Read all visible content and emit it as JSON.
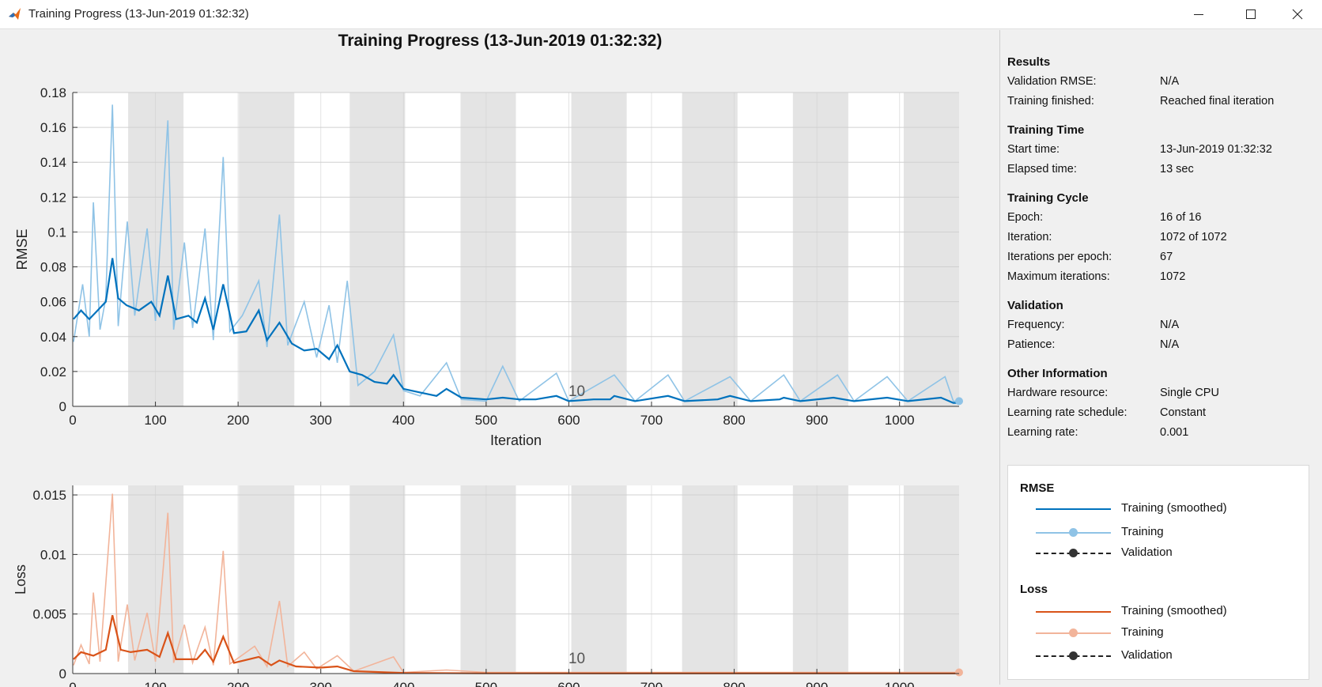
{
  "window": {
    "title": "Training Progress (13-Jun-2019 01:32:32)",
    "controls": [
      "minimize",
      "maximize",
      "close"
    ]
  },
  "main_title": "Training Progress (13-Jun-2019 01:32:32)",
  "colors": {
    "rmse_smoothed": "#0072bd",
    "rmse_raw": "#8fc3e6",
    "loss_smoothed": "#d95319",
    "loss_raw": "#f2b49a",
    "epoch_shade": "#e4e4e4",
    "panel_bg": "#f0f0f0"
  },
  "results_panel": {
    "sections": [
      {
        "title": "Results",
        "rows": [
          {
            "label": "Validation RMSE:",
            "value": "N/A"
          },
          {
            "label": "Training finished:",
            "value": "Reached final iteration"
          }
        ]
      },
      {
        "title": "Training Time",
        "rows": [
          {
            "label": "Start time:",
            "value": "13-Jun-2019 01:32:32"
          },
          {
            "label": "Elapsed time:",
            "value": "13 sec"
          }
        ]
      },
      {
        "title": "Training Cycle",
        "rows": [
          {
            "label": "Epoch:",
            "value": "16 of 16"
          },
          {
            "label": "Iteration:",
            "value": "1072 of 1072"
          },
          {
            "label": "Iterations per epoch:",
            "value": "67"
          },
          {
            "label": "Maximum iterations:",
            "value": "1072"
          }
        ]
      },
      {
        "title": "Validation",
        "rows": [
          {
            "label": "Frequency:",
            "value": "N/A"
          },
          {
            "label": "Patience:",
            "value": "N/A"
          }
        ]
      },
      {
        "title": "Other Information",
        "rows": [
          {
            "label": "Hardware resource:",
            "value": "Single CPU"
          },
          {
            "label": "Learning rate schedule:",
            "value": "Constant"
          },
          {
            "label": "Learning rate:",
            "value": "0.001"
          }
        ]
      }
    ]
  },
  "legend": {
    "groups": [
      {
        "title": "RMSE",
        "entries": [
          {
            "label": "Training (smoothed)",
            "style": "solid-smoothed"
          },
          {
            "label": "Training",
            "style": "solid-dot-raw"
          },
          {
            "label": "Validation",
            "style": "dashed-dot"
          }
        ]
      },
      {
        "title": "Loss",
        "entries": [
          {
            "label": "Training (smoothed)",
            "style": "solid-smoothed"
          },
          {
            "label": "Training",
            "style": "solid-dot-raw"
          },
          {
            "label": "Validation",
            "style": "dashed-dot"
          }
        ]
      }
    ]
  },
  "chart_data": [
    {
      "type": "line",
      "ylabel": "RMSE",
      "xlabel": "Iteration",
      "xlim": [
        0,
        1072
      ],
      "ylim": [
        0,
        0.18
      ],
      "xticks": [
        0,
        100,
        200,
        300,
        400,
        500,
        600,
        700,
        800,
        900,
        1000
      ],
      "yticks": [
        0,
        0.02,
        0.04,
        0.06,
        0.08,
        0.1,
        0.12,
        0.14,
        0.16,
        0.18
      ],
      "ytick_labels": [
        "0",
        "0.02",
        "0.04",
        "0.06",
        "0.08",
        "0.1",
        "0.12",
        "0.14",
        "0.16",
        "0.18"
      ],
      "epoch_annotation": {
        "text": "10",
        "x": 603
      },
      "epochs": 16,
      "iterations_per_epoch": 67,
      "grid": true,
      "series": [
        {
          "name": "Training (smoothed)",
          "points": [
            [
              1,
              0.05
            ],
            [
              10,
              0.055
            ],
            [
              20,
              0.05
            ],
            [
              30,
              0.055
            ],
            [
              40,
              0.06
            ],
            [
              48,
              0.085
            ],
            [
              55,
              0.062
            ],
            [
              65,
              0.058
            ],
            [
              80,
              0.055
            ],
            [
              95,
              0.06
            ],
            [
              105,
              0.052
            ],
            [
              115,
              0.075
            ],
            [
              125,
              0.05
            ],
            [
              140,
              0.052
            ],
            [
              150,
              0.048
            ],
            [
              160,
              0.062
            ],
            [
              170,
              0.044
            ],
            [
              182,
              0.07
            ],
            [
              195,
              0.042
            ],
            [
              210,
              0.043
            ],
            [
              225,
              0.055
            ],
            [
              235,
              0.038
            ],
            [
              250,
              0.048
            ],
            [
              265,
              0.036
            ],
            [
              280,
              0.032
            ],
            [
              295,
              0.033
            ],
            [
              310,
              0.027
            ],
            [
              320,
              0.035
            ],
            [
              335,
              0.02
            ],
            [
              350,
              0.018
            ],
            [
              365,
              0.014
            ],
            [
              380,
              0.013
            ],
            [
              388,
              0.018
            ],
            [
              400,
              0.01
            ],
            [
              420,
              0.008
            ],
            [
              440,
              0.006
            ],
            [
              452,
              0.01
            ],
            [
              470,
              0.005
            ],
            [
              500,
              0.004
            ],
            [
              520,
              0.005
            ],
            [
              540,
              0.004
            ],
            [
              560,
              0.004
            ],
            [
              585,
              0.006
            ],
            [
              600,
              0.003
            ],
            [
              630,
              0.004
            ],
            [
              650,
              0.004
            ],
            [
              655,
              0.006
            ],
            [
              680,
              0.003
            ],
            [
              720,
              0.006
            ],
            [
              740,
              0.003
            ],
            [
              780,
              0.004
            ],
            [
              795,
              0.006
            ],
            [
              820,
              0.003
            ],
            [
              855,
              0.004
            ],
            [
              860,
              0.005
            ],
            [
              880,
              0.003
            ],
            [
              920,
              0.005
            ],
            [
              945,
              0.003
            ],
            [
              985,
              0.005
            ],
            [
              1010,
              0.003
            ],
            [
              1050,
              0.005
            ],
            [
              1065,
              0.002
            ],
            [
              1072,
              0.002
            ]
          ]
        },
        {
          "name": "Training",
          "points": [
            [
              1,
              0.037
            ],
            [
              12,
              0.07
            ],
            [
              20,
              0.04
            ],
            [
              25,
              0.117
            ],
            [
              33,
              0.044
            ],
            [
              40,
              0.062
            ],
            [
              48,
              0.173
            ],
            [
              55,
              0.046
            ],
            [
              66,
              0.106
            ],
            [
              75,
              0.052
            ],
            [
              90,
              0.102
            ],
            [
              100,
              0.049
            ],
            [
              115,
              0.164
            ],
            [
              122,
              0.044
            ],
            [
              135,
              0.094
            ],
            [
              145,
              0.045
            ],
            [
              160,
              0.102
            ],
            [
              170,
              0.038
            ],
            [
              182,
              0.143
            ],
            [
              190,
              0.043
            ],
            [
              205,
              0.052
            ],
            [
              225,
              0.072
            ],
            [
              235,
              0.034
            ],
            [
              250,
              0.11
            ],
            [
              260,
              0.035
            ],
            [
              280,
              0.06
            ],
            [
              295,
              0.028
            ],
            [
              310,
              0.058
            ],
            [
              320,
              0.025
            ],
            [
              332,
              0.072
            ],
            [
              345,
              0.012
            ],
            [
              365,
              0.02
            ],
            [
              388,
              0.041
            ],
            [
              400,
              0.009
            ],
            [
              420,
              0.006
            ],
            [
              452,
              0.025
            ],
            [
              470,
              0.004
            ],
            [
              500,
              0.003
            ],
            [
              520,
              0.023
            ],
            [
              540,
              0.003
            ],
            [
              585,
              0.019
            ],
            [
              600,
              0.003
            ],
            [
              655,
              0.018
            ],
            [
              680,
              0.003
            ],
            [
              720,
              0.018
            ],
            [
              740,
              0.003
            ],
            [
              795,
              0.017
            ],
            [
              820,
              0.003
            ],
            [
              860,
              0.018
            ],
            [
              880,
              0.003
            ],
            [
              925,
              0.018
            ],
            [
              945,
              0.003
            ],
            [
              985,
              0.017
            ],
            [
              1010,
              0.003
            ],
            [
              1055,
              0.017
            ],
            [
              1065,
              0.003
            ],
            [
              1072,
              0.003
            ]
          ]
        },
        {
          "name": "Validation",
          "points": []
        }
      ]
    },
    {
      "type": "line",
      "ylabel": "Loss",
      "xlabel": "Iteration",
      "xlim": [
        0,
        1072
      ],
      "ylim": [
        0,
        0.0158
      ],
      "xticks": [
        0,
        100,
        200,
        300,
        400,
        500,
        600,
        700,
        800,
        900,
        1000
      ],
      "yticks": [
        0,
        0.005,
        0.01,
        0.015
      ],
      "ytick_labels": [
        "0",
        "0.005",
        "0.01",
        "0.015"
      ],
      "epoch_annotation": {
        "text": "10",
        "x": 603
      },
      "epochs": 16,
      "iterations_per_epoch": 67,
      "grid": true,
      "series": [
        {
          "name": "Training (smoothed)",
          "points": [
            [
              1,
              0.0012
            ],
            [
              10,
              0.0018
            ],
            [
              25,
              0.0015
            ],
            [
              40,
              0.002
            ],
            [
              48,
              0.0049
            ],
            [
              58,
              0.002
            ],
            [
              70,
              0.0018
            ],
            [
              90,
              0.002
            ],
            [
              105,
              0.0014
            ],
            [
              115,
              0.0034
            ],
            [
              125,
              0.0012
            ],
            [
              150,
              0.0012
            ],
            [
              160,
              0.002
            ],
            [
              170,
              0.001
            ],
            [
              182,
              0.0031
            ],
            [
              195,
              0.0009
            ],
            [
              225,
              0.0014
            ],
            [
              240,
              0.0007
            ],
            [
              250,
              0.0011
            ],
            [
              270,
              0.0006
            ],
            [
              300,
              0.0005
            ],
            [
              320,
              0.0006
            ],
            [
              340,
              0.0002
            ],
            [
              380,
              0.0001
            ],
            [
              400,
              5e-05
            ],
            [
              500,
              2e-05
            ],
            [
              1072,
              1e-05
            ]
          ]
        },
        {
          "name": "Training",
          "points": [
            [
              1,
              0.0007
            ],
            [
              10,
              0.0024
            ],
            [
              20,
              0.0008
            ],
            [
              25,
              0.0068
            ],
            [
              33,
              0.001
            ],
            [
              48,
              0.0151
            ],
            [
              55,
              0.001
            ],
            [
              66,
              0.0058
            ],
            [
              75,
              0.0011
            ],
            [
              90,
              0.0051
            ],
            [
              100,
              0.001
            ],
            [
              115,
              0.0135
            ],
            [
              122,
              0.0009
            ],
            [
              135,
              0.0041
            ],
            [
              145,
              0.0009
            ],
            [
              160,
              0.0039
            ],
            [
              170,
              0.0007
            ],
            [
              182,
              0.0103
            ],
            [
              190,
              0.0008
            ],
            [
              220,
              0.0023
            ],
            [
              235,
              0.0006
            ],
            [
              250,
              0.0061
            ],
            [
              260,
              0.0006
            ],
            [
              280,
              0.0018
            ],
            [
              295,
              0.0004
            ],
            [
              320,
              0.0015
            ],
            [
              340,
              0.0002
            ],
            [
              388,
              0.0014
            ],
            [
              400,
              0.0001
            ],
            [
              452,
              0.0003
            ],
            [
              500,
              0.0001
            ],
            [
              1072,
              0.0001
            ]
          ]
        },
        {
          "name": "Validation",
          "points": []
        }
      ]
    }
  ]
}
